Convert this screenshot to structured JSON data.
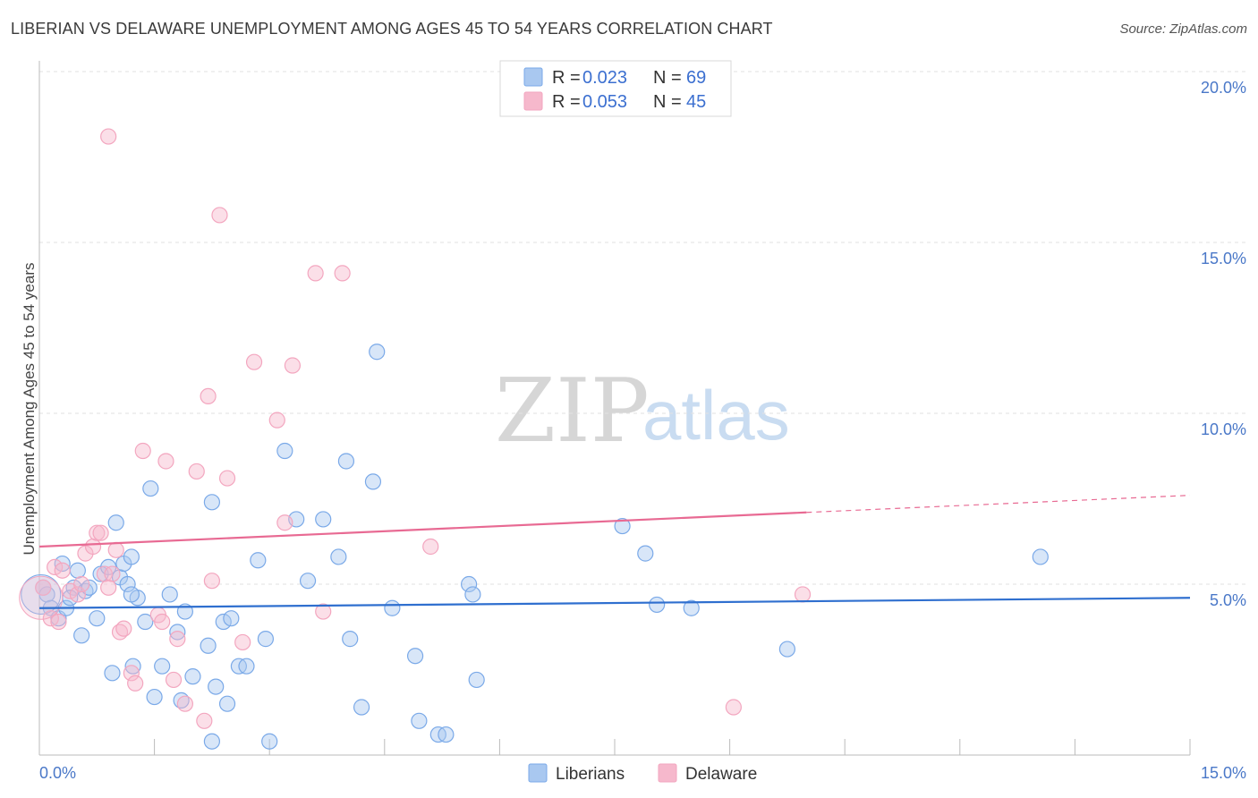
{
  "header": {
    "title": "LIBERIAN VS DELAWARE UNEMPLOYMENT AMONG AGES 45 TO 54 YEARS CORRELATION CHART",
    "source": "Source: ZipAtlas.com"
  },
  "watermark": {
    "zip": "ZIP",
    "atlas": "atlas"
  },
  "legend": {
    "r_label": "R =",
    "n_label": "N =",
    "items": [
      {
        "r": "0.023",
        "n": "69",
        "color": "#a9c8f0"
      },
      {
        "r": "0.053",
        "n": "45",
        "color": "#f6b8cc"
      }
    ]
  },
  "bottom_legend": [
    {
      "label": "Liberians",
      "color": "#a9c8f0"
    },
    {
      "label": "Delaware",
      "color": "#f6b8cc"
    }
  ],
  "chart_data": {
    "type": "scatter",
    "ylabel": "Unemployment Among Ages 45 to 54 years",
    "xlim": [
      0,
      15
    ],
    "ylim": [
      0,
      20
    ],
    "x_tick_labels": [
      {
        "value": 0,
        "label": "0.0%"
      },
      {
        "value": 15,
        "label": "15.0%"
      }
    ],
    "y_tick_labels": [
      {
        "value": 5,
        "label": "5.0%"
      },
      {
        "value": 10,
        "label": "10.0%"
      },
      {
        "value": 15,
        "label": "15.0%"
      },
      {
        "value": 20,
        "label": "20.0%"
      }
    ],
    "grid": "horizontal dashed",
    "legend_position": "top-center",
    "series": [
      {
        "name": "Liberians",
        "color": "#7aa9e8",
        "trend": {
          "x": [
            0,
            15
          ],
          "y": [
            4.3,
            4.6
          ],
          "color": "#2f6fcf"
        },
        "points": [
          [
            0.05,
            4.9
          ],
          [
            0.1,
            4.7
          ],
          [
            0.15,
            4.3
          ],
          [
            0.25,
            4.0
          ],
          [
            0.3,
            5.6
          ],
          [
            0.35,
            4.3
          ],
          [
            0.45,
            4.9
          ],
          [
            0.5,
            5.4
          ],
          [
            0.55,
            3.5
          ],
          [
            0.6,
            4.8
          ],
          [
            0.65,
            4.9
          ],
          [
            0.75,
            4.0
          ],
          [
            0.8,
            5.3
          ],
          [
            0.9,
            5.5
          ],
          [
            0.95,
            2.4
          ],
          [
            1.0,
            6.8
          ],
          [
            1.05,
            5.2
          ],
          [
            1.1,
            5.6
          ],
          [
            1.15,
            5.0
          ],
          [
            1.2,
            5.8
          ],
          [
            1.22,
            2.6
          ],
          [
            1.28,
            4.6
          ],
          [
            1.38,
            3.9
          ],
          [
            1.45,
            7.8
          ],
          [
            1.5,
            1.7
          ],
          [
            1.6,
            2.6
          ],
          [
            1.7,
            4.7
          ],
          [
            1.8,
            3.6
          ],
          [
            1.85,
            1.6
          ],
          [
            1.9,
            4.2
          ],
          [
            2.0,
            2.3
          ],
          [
            2.2,
            3.2
          ],
          [
            2.25,
            7.4
          ],
          [
            2.3,
            2.0
          ],
          [
            2.4,
            3.9
          ],
          [
            2.45,
            1.5
          ],
          [
            2.5,
            4.0
          ],
          [
            2.6,
            2.6
          ],
          [
            2.7,
            2.6
          ],
          [
            2.85,
            5.7
          ],
          [
            2.95,
            3.4
          ],
          [
            3.0,
            0.4
          ],
          [
            3.2,
            8.9
          ],
          [
            3.35,
            6.9
          ],
          [
            3.5,
            5.1
          ],
          [
            3.7,
            6.9
          ],
          [
            3.9,
            5.8
          ],
          [
            4.0,
            8.6
          ],
          [
            4.05,
            3.4
          ],
          [
            4.2,
            1.4
          ],
          [
            4.35,
            8.0
          ],
          [
            4.4,
            11.8
          ],
          [
            4.6,
            4.3
          ],
          [
            4.9,
            2.9
          ],
          [
            4.95,
            1.0
          ],
          [
            5.2,
            0.6
          ],
          [
            5.3,
            0.6
          ],
          [
            5.6,
            5.0
          ],
          [
            5.65,
            4.7
          ],
          [
            5.7,
            2.2
          ],
          [
            7.6,
            6.7
          ],
          [
            7.9,
            5.9
          ],
          [
            8.05,
            4.4
          ],
          [
            8.5,
            4.3
          ],
          [
            9.75,
            3.1
          ],
          [
            13.05,
            5.8
          ],
          [
            2.25,
            0.4
          ],
          [
            1.2,
            4.7
          ],
          [
            0.4,
            4.6
          ]
        ]
      },
      {
        "name": "Delaware",
        "color": "#f3a6bf",
        "trend": {
          "x": [
            0,
            10
          ],
          "y": [
            6.1,
            7.1
          ],
          "dashed_to": [
            15,
            7.6
          ],
          "color": "#e86a93"
        },
        "points": [
          [
            0.05,
            4.9
          ],
          [
            0.15,
            4.0
          ],
          [
            0.2,
            5.5
          ],
          [
            0.3,
            5.4
          ],
          [
            0.4,
            4.8
          ],
          [
            0.5,
            4.7
          ],
          [
            0.55,
            5.0
          ],
          [
            0.6,
            5.9
          ],
          [
            0.7,
            6.1
          ],
          [
            0.75,
            6.5
          ],
          [
            0.8,
            6.5
          ],
          [
            0.85,
            5.3
          ],
          [
            0.9,
            4.9
          ],
          [
            0.95,
            5.3
          ],
          [
            1.0,
            6.0
          ],
          [
            1.05,
            3.6
          ],
          [
            1.1,
            3.7
          ],
          [
            1.2,
            2.4
          ],
          [
            1.25,
            2.1
          ],
          [
            1.35,
            8.9
          ],
          [
            1.55,
            4.1
          ],
          [
            1.6,
            3.9
          ],
          [
            1.65,
            8.6
          ],
          [
            1.75,
            2.2
          ],
          [
            1.8,
            3.4
          ],
          [
            1.9,
            1.5
          ],
          [
            2.05,
            8.3
          ],
          [
            2.15,
            1.0
          ],
          [
            2.2,
            10.5
          ],
          [
            2.25,
            5.1
          ],
          [
            2.35,
            15.8
          ],
          [
            2.45,
            8.1
          ],
          [
            2.65,
            3.3
          ],
          [
            2.8,
            11.5
          ],
          [
            3.1,
            9.8
          ],
          [
            3.2,
            6.8
          ],
          [
            3.3,
            11.4
          ],
          [
            3.6,
            14.1
          ],
          [
            3.7,
            4.2
          ],
          [
            3.95,
            14.1
          ],
          [
            5.1,
            6.1
          ],
          [
            9.05,
            1.4
          ],
          [
            9.95,
            4.7
          ],
          [
            0.9,
            18.1
          ],
          [
            0.25,
            3.9
          ]
        ]
      }
    ]
  }
}
